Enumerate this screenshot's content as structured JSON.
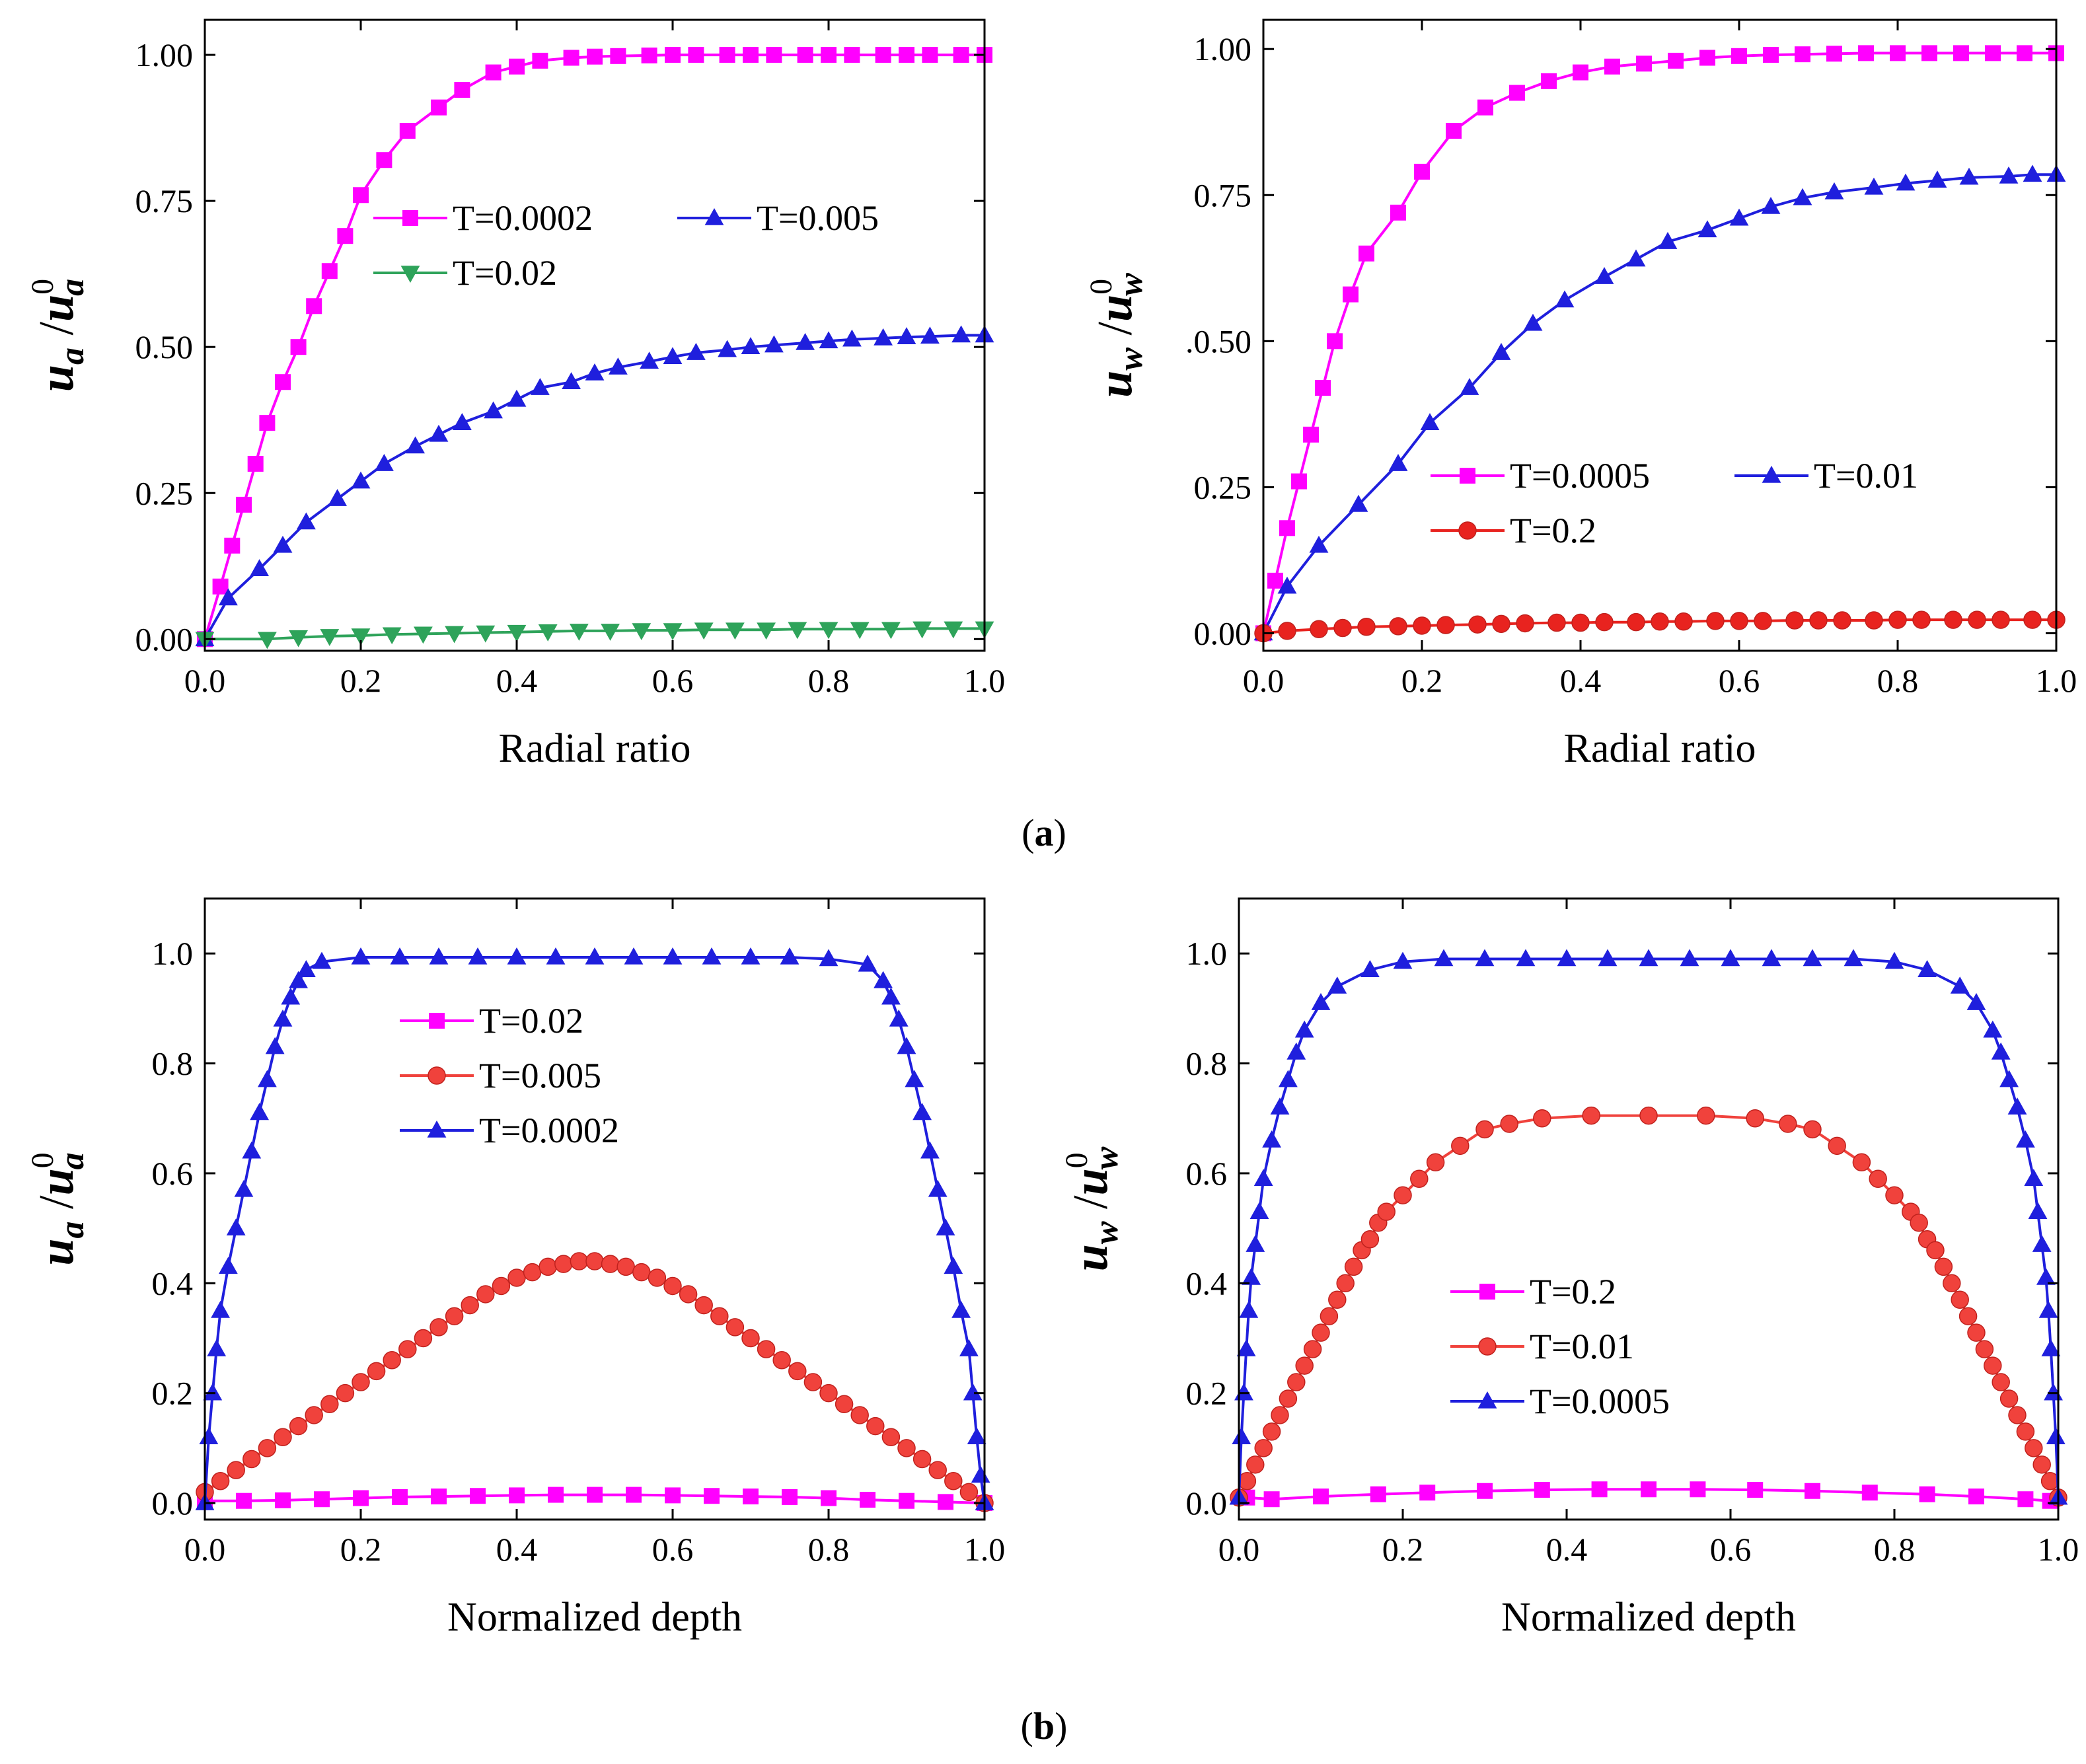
{
  "figure": {
    "caption_a": {
      "open": "(",
      "letter": "a",
      "close": ")"
    },
    "caption_b": {
      "open": "(",
      "letter": "b",
      "close": ")"
    }
  },
  "chart_data": [
    {
      "id": "a-left",
      "type": "line",
      "xlabel": "Radial ratio",
      "ylabel": {
        "base": "u",
        "sub": "a",
        "sep": "/",
        "sup": "0"
      },
      "xlim": [
        0,
        1
      ],
      "ylim": [
        -0.02,
        1.06
      ],
      "xticks": [
        "0.0",
        "0.2",
        "0.4",
        "0.6",
        "0.8",
        "1.0"
      ],
      "yticks": [
        "0.00",
        "0.25",
        "0.50",
        "0.75",
        "1.00"
      ],
      "legend_placement": "middle",
      "series": [
        {
          "name": "T=0.0002",
          "color": "#ff00ff",
          "marker": "square",
          "x": [
            0,
            0.02,
            0.035,
            0.05,
            0.065,
            0.08,
            0.1,
            0.12,
            0.14,
            0.16,
            0.18,
            0.2,
            0.23,
            0.26,
            0.3,
            0.33,
            0.37,
            0.4,
            0.43,
            0.47,
            0.5,
            0.53,
            0.57,
            0.6,
            0.63,
            0.67,
            0.7,
            0.73,
            0.77,
            0.8,
            0.83,
            0.87,
            0.9,
            0.93,
            0.97,
            1.0
          ],
          "y": [
            0,
            0.09,
            0.16,
            0.23,
            0.3,
            0.37,
            0.44,
            0.5,
            0.57,
            0.63,
            0.69,
            0.76,
            0.82,
            0.87,
            0.91,
            0.94,
            0.97,
            0.98,
            0.99,
            0.995,
            0.997,
            0.998,
            0.999,
            1.0,
            1.0,
            1.0,
            1.0,
            1.0,
            1.0,
            1.0,
            1.0,
            1.0,
            1.0,
            1.0,
            1.0,
            1.0
          ]
        },
        {
          "name": "T=0.005",
          "color": "#1f1fdd",
          "marker": "triangle-up",
          "x": [
            0,
            0.03,
            0.07,
            0.1,
            0.13,
            0.17,
            0.2,
            0.23,
            0.27,
            0.3,
            0.33,
            0.37,
            0.4,
            0.43,
            0.47,
            0.5,
            0.53,
            0.57,
            0.6,
            0.63,
            0.67,
            0.7,
            0.73,
            0.77,
            0.8,
            0.83,
            0.87,
            0.9,
            0.93,
            0.97,
            1.0
          ],
          "y": [
            0,
            0.07,
            0.12,
            0.16,
            0.2,
            0.24,
            0.27,
            0.3,
            0.33,
            0.35,
            0.37,
            0.39,
            0.41,
            0.43,
            0.44,
            0.455,
            0.465,
            0.475,
            0.483,
            0.49,
            0.495,
            0.5,
            0.503,
            0.507,
            0.51,
            0.513,
            0.515,
            0.517,
            0.518,
            0.52,
            0.52
          ]
        },
        {
          "name": "T=0.02",
          "color": "#2ea35a",
          "marker": "triangle-down",
          "x": [
            0,
            0.08,
            0.12,
            0.16,
            0.2,
            0.24,
            0.28,
            0.32,
            0.36,
            0.4,
            0.44,
            0.48,
            0.52,
            0.56,
            0.6,
            0.64,
            0.68,
            0.72,
            0.76,
            0.8,
            0.84,
            0.88,
            0.92,
            0.96,
            1.0
          ],
          "y": [
            0,
            0.0,
            0.003,
            0.005,
            0.006,
            0.008,
            0.009,
            0.01,
            0.011,
            0.012,
            0.013,
            0.014,
            0.014,
            0.015,
            0.015,
            0.016,
            0.016,
            0.016,
            0.017,
            0.017,
            0.017,
            0.017,
            0.018,
            0.018,
            0.018
          ]
        }
      ]
    },
    {
      "id": "a-right",
      "type": "line",
      "xlabel": "Radial ratio",
      "ylabel": {
        "base": "u",
        "sub": "w",
        "sep": "/",
        "sup": "0"
      },
      "xlim": [
        0,
        1
      ],
      "ylim": [
        -0.03,
        1.05
      ],
      "xticks": [
        "0.0",
        "0.2",
        "0.4",
        "0.6",
        "0.8",
        "1.0"
      ],
      "yticks": [
        "0.00",
        "0.25",
        ".0.50",
        "0.75",
        "1.00"
      ],
      "legend_placement": "lower-middle",
      "series": [
        {
          "name": "T=0.0005",
          "color": "#ff00ff",
          "marker": "square",
          "x": [
            0,
            0.015,
            0.03,
            0.045,
            0.06,
            0.075,
            0.09,
            0.11,
            0.13,
            0.17,
            0.2,
            0.24,
            0.28,
            0.32,
            0.36,
            0.4,
            0.44,
            0.48,
            0.52,
            0.56,
            0.6,
            0.64,
            0.68,
            0.72,
            0.76,
            0.8,
            0.84,
            0.88,
            0.92,
            0.96,
            1.0
          ],
          "y": [
            0,
            0.09,
            0.18,
            0.26,
            0.34,
            0.42,
            0.5,
            0.58,
            0.65,
            0.72,
            0.79,
            0.86,
            0.9,
            0.925,
            0.945,
            0.96,
            0.97,
            0.975,
            0.98,
            0.985,
            0.988,
            0.99,
            0.991,
            0.992,
            0.993,
            0.993,
            0.993,
            0.993,
            0.993,
            0.993,
            0.993
          ]
        },
        {
          "name": "T=0.01",
          "color": "#1f1fdd",
          "marker": "triangle-up",
          "x": [
            0,
            0.03,
            0.07,
            0.12,
            0.17,
            0.21,
            0.26,
            0.3,
            0.34,
            0.38,
            0.43,
            0.47,
            0.51,
            0.56,
            0.6,
            0.64,
            0.68,
            0.72,
            0.77,
            0.81,
            0.85,
            0.89,
            0.94,
            0.97,
            1.0
          ],
          "y": [
            0,
            0.08,
            0.15,
            0.22,
            0.29,
            0.36,
            0.42,
            0.48,
            0.53,
            0.57,
            0.61,
            0.64,
            0.67,
            0.69,
            0.71,
            0.73,
            0.745,
            0.755,
            0.763,
            0.77,
            0.775,
            0.78,
            0.782,
            0.785,
            0.785
          ]
        },
        {
          "name": "T=0.2",
          "color": "#e8231f",
          "marker": "circle",
          "x": [
            0,
            0.03,
            0.07,
            0.1,
            0.13,
            0.17,
            0.2,
            0.23,
            0.27,
            0.3,
            0.33,
            0.37,
            0.4,
            0.43,
            0.47,
            0.5,
            0.53,
            0.57,
            0.6,
            0.63,
            0.67,
            0.7,
            0.73,
            0.77,
            0.8,
            0.83,
            0.87,
            0.9,
            0.93,
            0.97,
            1.0
          ],
          "y": [
            0,
            0.004,
            0.007,
            0.009,
            0.011,
            0.012,
            0.013,
            0.014,
            0.015,
            0.016,
            0.017,
            0.018,
            0.018,
            0.019,
            0.019,
            0.02,
            0.02,
            0.021,
            0.021,
            0.021,
            0.022,
            0.022,
            0.022,
            0.022,
            0.023,
            0.023,
            0.023,
            0.023,
            0.023,
            0.023,
            0.023
          ]
        }
      ]
    },
    {
      "id": "b-left",
      "type": "line",
      "xlabel": "Normalized depth",
      "ylabel": {
        "base": "u",
        "sub": "a",
        "sep": "/",
        "sup": "0"
      },
      "xlim": [
        0,
        1
      ],
      "ylim": [
        -0.03,
        1.1
      ],
      "xticks": [
        "0.0",
        "0.2",
        "0.4",
        "0.6",
        "0.8",
        "1.0"
      ],
      "yticks": [
        "0.0",
        "0.2",
        "0.4",
        "0.6",
        "0.8",
        "1.0"
      ],
      "legend_placement": "upper-middle",
      "series": [
        {
          "name": "T=0.02",
          "color": "#ff00ff",
          "marker": "square",
          "x": [
            0,
            0.05,
            0.1,
            0.15,
            0.2,
            0.25,
            0.3,
            0.35,
            0.4,
            0.45,
            0.5,
            0.55,
            0.6,
            0.65,
            0.7,
            0.75,
            0.8,
            0.85,
            0.9,
            0.95,
            1.0
          ],
          "y": [
            0.004,
            0.004,
            0.005,
            0.007,
            0.009,
            0.011,
            0.012,
            0.013,
            0.014,
            0.015,
            0.015,
            0.015,
            0.014,
            0.013,
            0.012,
            0.011,
            0.009,
            0.006,
            0.004,
            0.002,
            0.0
          ]
        },
        {
          "name": "T=0.005",
          "color": "#f0423c",
          "marker": "circle",
          "x": [
            0,
            0.02,
            0.04,
            0.06,
            0.08,
            0.1,
            0.12,
            0.14,
            0.16,
            0.18,
            0.2,
            0.22,
            0.24,
            0.26,
            0.28,
            0.3,
            0.32,
            0.34,
            0.36,
            0.38,
            0.4,
            0.42,
            0.44,
            0.46,
            0.48,
            0.5,
            0.52,
            0.54,
            0.56,
            0.58,
            0.6,
            0.62,
            0.64,
            0.66,
            0.68,
            0.7,
            0.72,
            0.74,
            0.76,
            0.78,
            0.8,
            0.82,
            0.84,
            0.86,
            0.88,
            0.9,
            0.92,
            0.94,
            0.96,
            0.98,
            1.0
          ],
          "y": [
            0.02,
            0.04,
            0.06,
            0.08,
            0.1,
            0.12,
            0.14,
            0.16,
            0.18,
            0.2,
            0.22,
            0.24,
            0.26,
            0.28,
            0.3,
            0.32,
            0.34,
            0.36,
            0.38,
            0.395,
            0.41,
            0.42,
            0.43,
            0.435,
            0.44,
            0.44,
            0.435,
            0.43,
            0.42,
            0.41,
            0.395,
            0.38,
            0.36,
            0.34,
            0.32,
            0.3,
            0.28,
            0.26,
            0.24,
            0.22,
            0.2,
            0.18,
            0.16,
            0.14,
            0.12,
            0.1,
            0.08,
            0.06,
            0.04,
            0.02,
            0.0
          ]
        },
        {
          "name": "T=0.0002",
          "color": "#1f1fdd",
          "marker": "triangle-up",
          "x": [
            0,
            0.005,
            0.01,
            0.015,
            0.02,
            0.03,
            0.04,
            0.05,
            0.06,
            0.07,
            0.08,
            0.09,
            0.1,
            0.11,
            0.12,
            0.13,
            0.15,
            0.2,
            0.25,
            0.3,
            0.35,
            0.4,
            0.45,
            0.5,
            0.55,
            0.6,
            0.65,
            0.7,
            0.75,
            0.8,
            0.85,
            0.87,
            0.88,
            0.89,
            0.9,
            0.91,
            0.92,
            0.93,
            0.94,
            0.95,
            0.96,
            0.97,
            0.98,
            0.985,
            0.99,
            0.995,
            1.0
          ],
          "y": [
            0.0,
            0.12,
            0.2,
            0.28,
            0.35,
            0.43,
            0.5,
            0.57,
            0.64,
            0.71,
            0.77,
            0.83,
            0.88,
            0.92,
            0.95,
            0.97,
            0.985,
            0.993,
            0.993,
            0.993,
            0.993,
            0.993,
            0.993,
            0.993,
            0.993,
            0.993,
            0.993,
            0.993,
            0.993,
            0.99,
            0.98,
            0.95,
            0.92,
            0.88,
            0.83,
            0.77,
            0.71,
            0.64,
            0.57,
            0.5,
            0.43,
            0.35,
            0.28,
            0.2,
            0.12,
            0.05,
            0.0
          ]
        }
      ]
    },
    {
      "id": "b-right",
      "type": "line",
      "xlabel": "Normalized depth",
      "ylabel": {
        "base": "u",
        "sub": "w",
        "sep": "/",
        "sup": "0"
      },
      "xlim": [
        0,
        1
      ],
      "ylim": [
        -0.03,
        1.1
      ],
      "xticks": [
        "0.0",
        "0.2",
        "0.4",
        "0.6",
        "0.8",
        "1.0"
      ],
      "yticks": [
        "0.0",
        "0.2",
        "0.4",
        "0.6",
        "0.8",
        "1.0"
      ],
      "legend_placement": "lower-middle",
      "series": [
        {
          "name": "T=0.2",
          "color": "#ff00ff",
          "marker": "square",
          "x": [
            0.01,
            0.04,
            0.1,
            0.17,
            0.23,
            0.3,
            0.37,
            0.44,
            0.5,
            0.56,
            0.63,
            0.7,
            0.77,
            0.84,
            0.9,
            0.96,
            0.99
          ],
          "y": [
            0.01,
            0.007,
            0.012,
            0.016,
            0.019,
            0.022,
            0.024,
            0.025,
            0.025,
            0.025,
            0.024,
            0.022,
            0.019,
            0.016,
            0.012,
            0.007,
            0.004
          ]
        },
        {
          "name": "T=0.01",
          "color": "#f0423c",
          "marker": "circle",
          "x": [
            0,
            0.01,
            0.02,
            0.03,
            0.04,
            0.05,
            0.06,
            0.07,
            0.08,
            0.09,
            0.1,
            0.11,
            0.12,
            0.13,
            0.14,
            0.15,
            0.16,
            0.17,
            0.18,
            0.2,
            0.22,
            0.24,
            0.27,
            0.3,
            0.33,
            0.37,
            0.43,
            0.5,
            0.57,
            0.63,
            0.67,
            0.7,
            0.73,
            0.76,
            0.78,
            0.8,
            0.82,
            0.83,
            0.84,
            0.85,
            0.86,
            0.87,
            0.88,
            0.89,
            0.9,
            0.91,
            0.92,
            0.93,
            0.94,
            0.95,
            0.96,
            0.97,
            0.98,
            0.99,
            1.0
          ],
          "y": [
            0.01,
            0.04,
            0.07,
            0.1,
            0.13,
            0.16,
            0.19,
            0.22,
            0.25,
            0.28,
            0.31,
            0.34,
            0.37,
            0.4,
            0.43,
            0.46,
            0.48,
            0.51,
            0.53,
            0.56,
            0.59,
            0.62,
            0.65,
            0.68,
            0.69,
            0.7,
            0.705,
            0.705,
            0.705,
            0.7,
            0.69,
            0.68,
            0.65,
            0.62,
            0.59,
            0.56,
            0.53,
            0.51,
            0.48,
            0.46,
            0.43,
            0.4,
            0.37,
            0.34,
            0.31,
            0.28,
            0.25,
            0.22,
            0.19,
            0.16,
            0.13,
            0.1,
            0.07,
            0.04,
            0.01
          ]
        },
        {
          "name": "T=0.0005",
          "color": "#1f1fdd",
          "marker": "triangle-up",
          "x": [
            0,
            0.003,
            0.006,
            0.009,
            0.012,
            0.015,
            0.02,
            0.025,
            0.03,
            0.04,
            0.05,
            0.06,
            0.07,
            0.08,
            0.1,
            0.12,
            0.16,
            0.2,
            0.25,
            0.3,
            0.35,
            0.4,
            0.45,
            0.5,
            0.55,
            0.6,
            0.65,
            0.7,
            0.75,
            0.8,
            0.84,
            0.88,
            0.9,
            0.92,
            0.93,
            0.94,
            0.95,
            0.96,
            0.97,
            0.975,
            0.98,
            0.985,
            0.988,
            0.991,
            0.994,
            0.997,
            1.0
          ],
          "y": [
            0.01,
            0.12,
            0.2,
            0.28,
            0.35,
            0.41,
            0.47,
            0.53,
            0.59,
            0.66,
            0.72,
            0.77,
            0.82,
            0.86,
            0.91,
            0.94,
            0.97,
            0.985,
            0.99,
            0.99,
            0.99,
            0.99,
            0.99,
            0.99,
            0.99,
            0.99,
            0.99,
            0.99,
            0.99,
            0.985,
            0.97,
            0.94,
            0.91,
            0.86,
            0.82,
            0.77,
            0.72,
            0.66,
            0.59,
            0.53,
            0.47,
            0.41,
            0.35,
            0.28,
            0.2,
            0.12,
            0.01
          ]
        }
      ]
    }
  ]
}
